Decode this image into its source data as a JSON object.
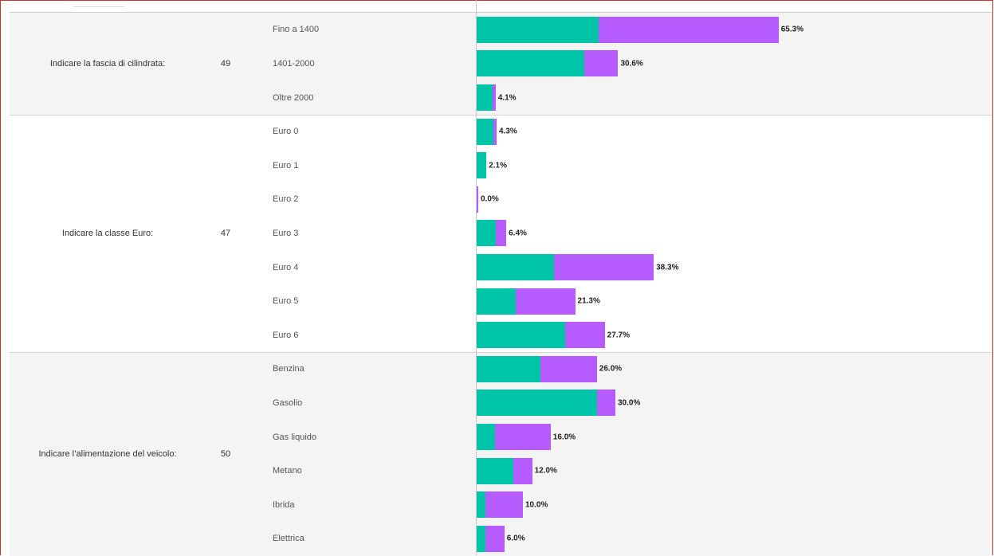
{
  "colors": {
    "series_a": "#00c4a7",
    "series_b": "#b65cff",
    "frame": "#c9302c",
    "shaded_row": "#f4f4f4"
  },
  "chart_data": {
    "type": "bar",
    "orientation": "horizontal",
    "stacked": true,
    "series_colors": [
      "#00c4a7",
      "#b65cff"
    ],
    "xlim": [
      0,
      100
    ],
    "groups": [
      {
        "question": "Indicare la fascia di cilindrata:",
        "n": "49",
        "rows": [
          {
            "category": "Fino a 1400",
            "a": 26.3,
            "b": 39.0,
            "label": "65.3%"
          },
          {
            "category": "1401-2000",
            "a": 23.3,
            "b": 7.3,
            "label": "30.6%"
          },
          {
            "category": "Oltre 2000",
            "a": 3.5,
            "b": 0.6,
            "label": "4.1%"
          }
        ]
      },
      {
        "question": "Indicare la classe Euro:",
        "n": "47",
        "rows": [
          {
            "category": "Euro 0",
            "a": 3.7,
            "b": 0.6,
            "label": "4.3%"
          },
          {
            "category": "Euro 1",
            "a": 2.1,
            "b": 0.0,
            "label": "2.1%"
          },
          {
            "category": "Euro 2",
            "a": 0.0,
            "b": 0.0,
            "label": "0.0%"
          },
          {
            "category": "Euro 3",
            "a": 4.1,
            "b": 2.3,
            "label": "6.4%"
          },
          {
            "category": "Euro 4",
            "a": 16.8,
            "b": 21.5,
            "label": "38.3%"
          },
          {
            "category": "Euro 5",
            "a": 8.4,
            "b": 12.9,
            "label": "21.3%"
          },
          {
            "category": "Euro 6",
            "a": 19.2,
            "b": 8.5,
            "label": "27.7%"
          }
        ]
      },
      {
        "question": "Indicare l’alimentazione del veicolo:",
        "n": "50",
        "rows": [
          {
            "category": "Benzina",
            "a": 13.8,
            "b": 12.2,
            "label": "26.0%"
          },
          {
            "category": "Gasolio",
            "a": 26.1,
            "b": 3.9,
            "label": "30.0%"
          },
          {
            "category": "Gas liquido",
            "a": 3.9,
            "b": 12.1,
            "label": "16.0%"
          },
          {
            "category": "Metano",
            "a": 7.9,
            "b": 4.1,
            "label": "12.0%"
          },
          {
            "category": "Ibrida",
            "a": 1.9,
            "b": 8.1,
            "label": "10.0%"
          },
          {
            "category": "Elettrica",
            "a": 1.9,
            "b": 4.1,
            "label": "6.0%"
          }
        ]
      }
    ]
  }
}
